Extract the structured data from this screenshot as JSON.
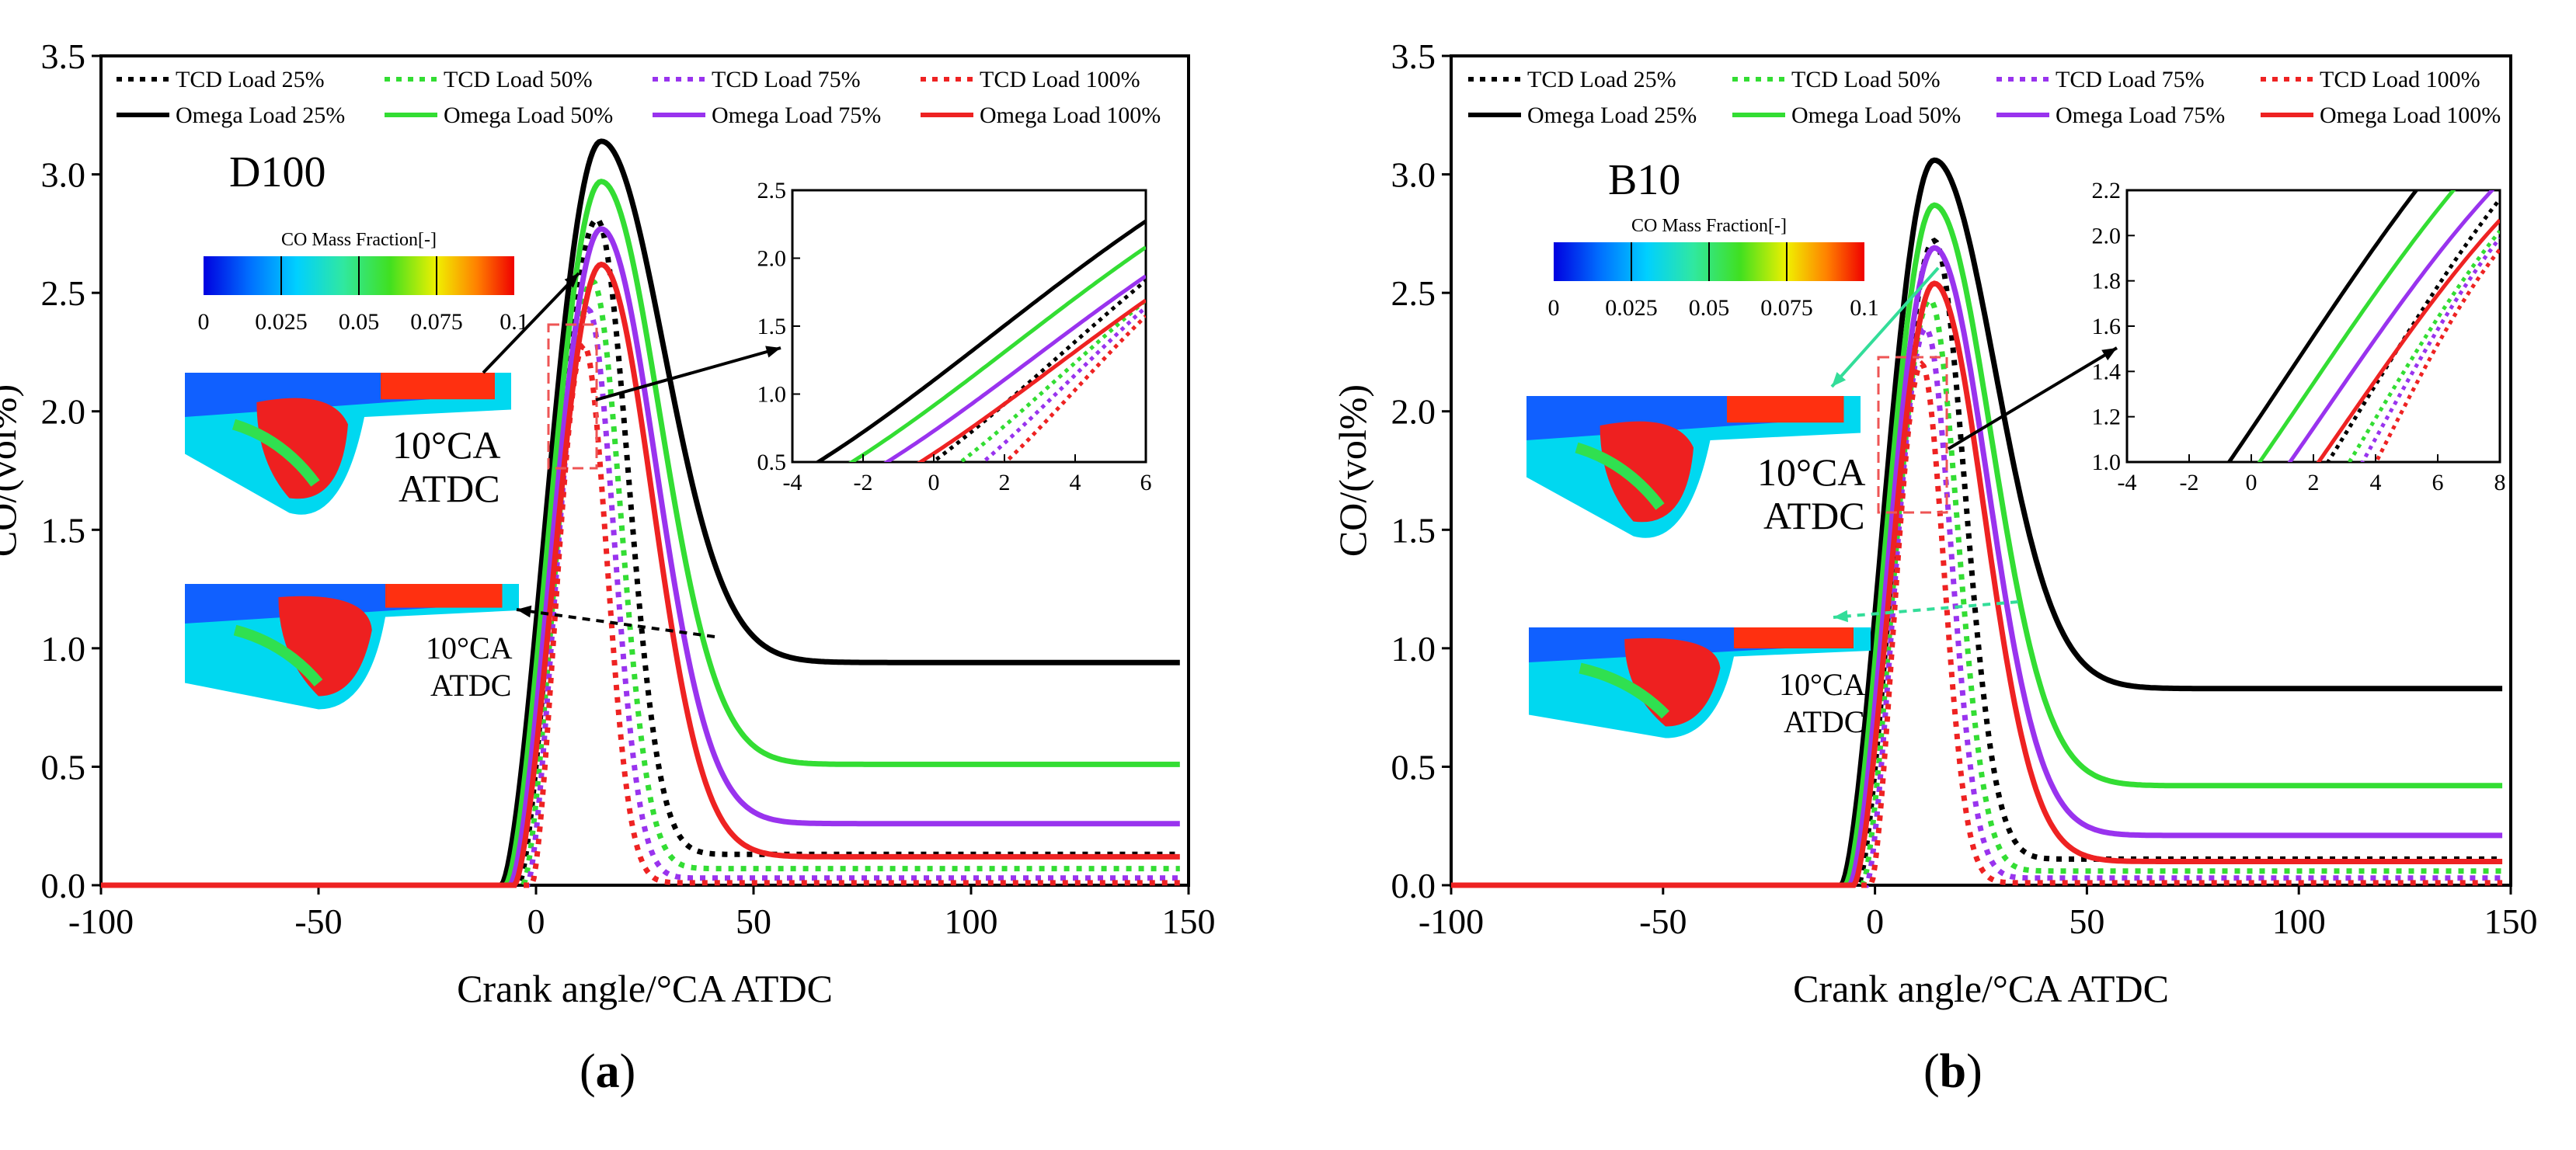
{
  "captions": {
    "a": "a",
    "b": "b"
  },
  "chart_data": [
    {
      "type": "line",
      "panel": "(a)",
      "annotation": "D100",
      "xlabel": "Crank angle/°CA ATDC",
      "ylabel": "CO/(vol%)",
      "xlim": [
        -100,
        150
      ],
      "ylim": [
        0,
        3.5
      ],
      "xticks": [
        "-100",
        "-50",
        "0",
        "50",
        "100",
        "150"
      ],
      "yticks": [
        "0.0",
        "0.5",
        "1.0",
        "1.5",
        "2.0",
        "2.5",
        "3.0",
        "3.5"
      ],
      "legend_position": "top",
      "legend": [
        "TCD Load 25%",
        "TCD Load 50%",
        "TCD Load 75%",
        "TCD Load 100%",
        "Omega Load 25%",
        "Omega Load 50%",
        "Omega Load 75%",
        "Omega Load 100%"
      ],
      "series": [
        {
          "name": "TCD Load 25%",
          "color": "#000000",
          "dash": true,
          "start": -4,
          "peak_x": 14,
          "peak": 2.81,
          "rise": 9,
          "fall_k": 0.14,
          "final": 0.13
        },
        {
          "name": "TCD Load 50%",
          "color": "#33dd33",
          "dash": true,
          "start": -3,
          "peak_x": 13,
          "peak": 2.55,
          "rise": 8,
          "fall_k": 0.155,
          "final": 0.07
        },
        {
          "name": "TCD Load 75%",
          "color": "#9933ee",
          "dash": true,
          "start": -2,
          "peak_x": 12,
          "peak": 2.43,
          "rise": 7,
          "fall_k": 0.17,
          "final": 0.03
        },
        {
          "name": "TCD Load 100%",
          "color": "#ee2222",
          "dash": true,
          "start": -1,
          "peak_x": 11,
          "peak": 2.28,
          "rise": 6,
          "fall_k": 0.19,
          "final": 0.01
        },
        {
          "name": "Omega Load 25%",
          "color": "#000000",
          "dash": false,
          "start": -8,
          "peak_x": 15,
          "peak": 3.14,
          "rise": 11,
          "fall_k": 0.07,
          "final": 0.94
        },
        {
          "name": "Omega Load 50%",
          "color": "#33dd33",
          "dash": false,
          "start": -7,
          "peak_x": 15,
          "peak": 2.97,
          "rise": 10,
          "fall_k": 0.075,
          "final": 0.51
        },
        {
          "name": "Omega Load 75%",
          "color": "#9933ee",
          "dash": false,
          "start": -6,
          "peak_x": 15,
          "peak": 2.77,
          "rise": 9,
          "fall_k": 0.08,
          "final": 0.26
        },
        {
          "name": "Omega Load 100%",
          "color": "#ee2222",
          "dash": false,
          "start": -5,
          "peak_x": 15,
          "peak": 2.62,
          "rise": 8,
          "fall_k": 0.085,
          "final": 0.12
        }
      ],
      "inset": {
        "xlim": [
          -4,
          6
        ],
        "ylim": [
          0.5,
          2.5
        ],
        "xticks": [
          "-4",
          "-2",
          "0",
          "2",
          "4",
          "6"
        ],
        "yticks": [
          "0.5",
          "1.0",
          "1.5",
          "2.0",
          "2.5"
        ]
      },
      "contours": {
        "colorbar_title": "CO Mass Fraction[-]",
        "colorbar_ticks": [
          "0",
          "0.025",
          "0.05",
          "0.075",
          "0.1"
        ],
        "label_upper": [
          "10°CA",
          "ATDC"
        ],
        "label_lower": [
          "10°CA",
          "ATDC"
        ]
      }
    },
    {
      "type": "line",
      "panel": "(b)",
      "annotation": "B10",
      "xlabel": "Crank angle/°CA ATDC",
      "ylabel": "CO/(vol%)",
      "xlim": [
        -100,
        150
      ],
      "ylim": [
        0,
        3.5
      ],
      "xticks": [
        "-100",
        "-50",
        "0",
        "50",
        "100",
        "150"
      ],
      "yticks": [
        "0.0",
        "0.5",
        "1.0",
        "1.5",
        "2.0",
        "2.5",
        "3.0",
        "3.5"
      ],
      "legend_position": "top",
      "legend": [
        "TCD Load 25%",
        "TCD Load 50%",
        "TCD Load 75%",
        "TCD Load 100%",
        "Omega Load 25%",
        "Omega Load 50%",
        "Omega Load 75%",
        "Omega Load 100%"
      ],
      "series": [
        {
          "name": "TCD Load 25%",
          "color": "#000000",
          "dash": true,
          "start": -4,
          "peak_x": 14,
          "peak": 2.72,
          "rise": 9,
          "fall_k": 0.14,
          "final": 0.11
        },
        {
          "name": "TCD Load 50%",
          "color": "#33dd33",
          "dash": true,
          "start": -3,
          "peak_x": 13,
          "peak": 2.47,
          "rise": 8,
          "fall_k": 0.155,
          "final": 0.06
        },
        {
          "name": "TCD Load 75%",
          "color": "#9933ee",
          "dash": true,
          "start": -2,
          "peak_x": 12,
          "peak": 2.35,
          "rise": 7,
          "fall_k": 0.17,
          "final": 0.03
        },
        {
          "name": "TCD Load 100%",
          "color": "#ee2222",
          "dash": true,
          "start": -1,
          "peak_x": 11,
          "peak": 2.2,
          "rise": 6,
          "fall_k": 0.19,
          "final": 0.01
        },
        {
          "name": "Omega Load 25%",
          "color": "#000000",
          "dash": false,
          "start": -8,
          "peak_x": 14,
          "peak": 3.06,
          "rise": 11,
          "fall_k": 0.07,
          "final": 0.83
        },
        {
          "name": "Omega Load 50%",
          "color": "#33dd33",
          "dash": false,
          "start": -7,
          "peak_x": 14,
          "peak": 2.87,
          "rise": 10,
          "fall_k": 0.075,
          "final": 0.42
        },
        {
          "name": "Omega Load 75%",
          "color": "#9933ee",
          "dash": false,
          "start": -6,
          "peak_x": 14,
          "peak": 2.69,
          "rise": 9,
          "fall_k": 0.08,
          "final": 0.21
        },
        {
          "name": "Omega Load 100%",
          "color": "#ee2222",
          "dash": false,
          "start": -5,
          "peak_x": 14,
          "peak": 2.54,
          "rise": 8,
          "fall_k": 0.085,
          "final": 0.1
        }
      ],
      "inset": {
        "xlim": [
          -4,
          8
        ],
        "ylim": [
          1.0,
          2.2
        ],
        "xticks": [
          "-4",
          "-2",
          "0",
          "2",
          "4",
          "6",
          "8"
        ],
        "yticks": [
          "1.0",
          "1.2",
          "1.4",
          "1.6",
          "1.8",
          "2.0",
          "2.2"
        ]
      },
      "contours": {
        "colorbar_title": "CO Mass Fraction[-]",
        "colorbar_ticks": [
          "0",
          "0.025",
          "0.05",
          "0.075",
          "0.1"
        ],
        "label_upper": [
          "10°CA",
          "ATDC"
        ],
        "label_lower": [
          "10°CA",
          "ATDC"
        ]
      }
    }
  ]
}
